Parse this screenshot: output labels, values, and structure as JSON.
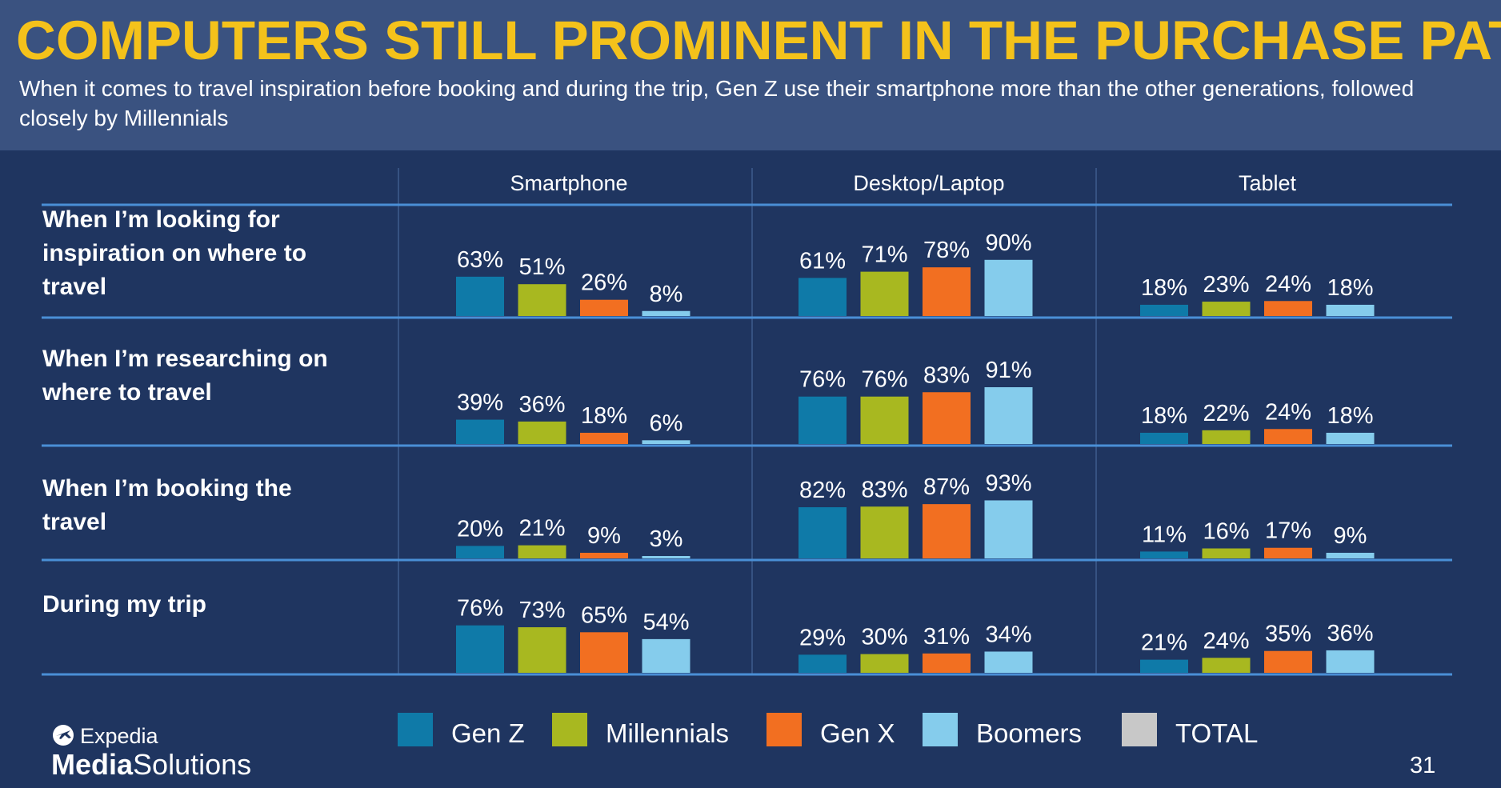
{
  "header": {
    "title": "COMPUTERS STILL PROMINENT IN THE PURCHASE PATH",
    "subtitle": "When it comes to travel inspiration before booking and during the trip, Gen Z use their smartphone more than the other generations, followed closely by Millennials"
  },
  "chart_data": {
    "type": "bar",
    "panels": [
      "Smartphone",
      "Desktop/Laptop",
      "Tablet"
    ],
    "rows": [
      "When I’m looking for inspiration on where to travel",
      "When I’m researching on where to travel",
      "When I’m booking the travel",
      "During my trip"
    ],
    "series": [
      {
        "name": "Gen Z",
        "color": "#0f7aa8"
      },
      {
        "name": "Millennials",
        "color": "#a8b820"
      },
      {
        "name": "Gen X",
        "color": "#f26f21"
      },
      {
        "name": "Boomers",
        "color": "#85ccec"
      },
      {
        "name": "TOTAL",
        "color": "#c8c8c8"
      }
    ],
    "values": [
      [
        [
          63,
          51,
          26,
          8
        ],
        [
          61,
          71,
          78,
          90
        ],
        [
          18,
          23,
          24,
          18
        ]
      ],
      [
        [
          39,
          36,
          18,
          6
        ],
        [
          76,
          76,
          83,
          91
        ],
        [
          18,
          22,
          24,
          18
        ]
      ],
      [
        [
          20,
          21,
          9,
          3
        ],
        [
          82,
          83,
          87,
          93
        ],
        [
          11,
          16,
          17,
          9
        ]
      ],
      [
        [
          76,
          73,
          65,
          54
        ],
        [
          29,
          30,
          31,
          34
        ],
        [
          21,
          24,
          35,
          36
        ]
      ]
    ],
    "unit": "%"
  },
  "footer": {
    "logo_brand": "Expedia",
    "logo_product_bold": "Media",
    "logo_product_rest": "Solutions",
    "page_number": "31"
  }
}
